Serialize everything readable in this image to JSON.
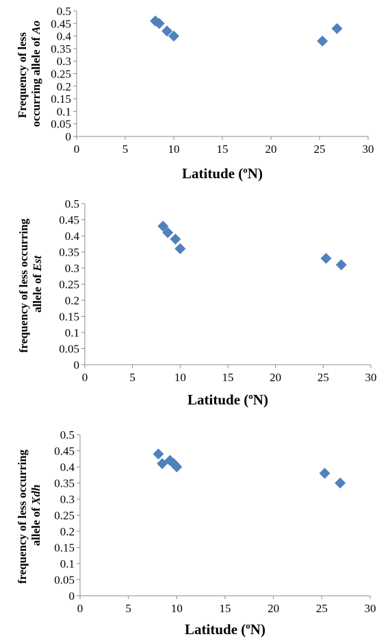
{
  "chart_data": [
    {
      "type": "scatter",
      "xlabel": "Latitude (",
      "xlabel_sup": "o",
      "xlabel_end": "N)",
      "ylabel_line1": "Frequency of less",
      "ylabel_line2": "occurring allele of ",
      "ylabel_italic": "Ao",
      "xlim": [
        0,
        30
      ],
      "ylim": [
        0,
        0.5
      ],
      "x_ticks": [
        "0",
        "5",
        "10",
        "15",
        "20",
        "25",
        "30"
      ],
      "y_ticks": [
        "0",
        "0.05",
        "0.1",
        "0.15",
        "0.2",
        "0.25",
        "0.3",
        "0.35",
        "0.4",
        "0.45",
        "0.5"
      ],
      "marker_color": "#4f81bd",
      "points": [
        {
          "x": 8.1,
          "y": 0.46
        },
        {
          "x": 8.5,
          "y": 0.45
        },
        {
          "x": 9.3,
          "y": 0.42
        },
        {
          "x": 10.0,
          "y": 0.4
        },
        {
          "x": 25.3,
          "y": 0.38
        },
        {
          "x": 26.8,
          "y": 0.43
        }
      ]
    },
    {
      "type": "scatter",
      "xlabel": "Latitude (",
      "xlabel_sup": "o",
      "xlabel_end": "N)",
      "ylabel_line1": "frequency of less occurring",
      "ylabel_line2": "allele of  ",
      "ylabel_italic": "Est",
      "xlim": [
        0,
        30
      ],
      "ylim": [
        0,
        0.5
      ],
      "x_ticks": [
        "0",
        "5",
        "10",
        "15",
        "20",
        "25",
        "30"
      ],
      "y_ticks": [
        "0",
        "0.05",
        "0.1",
        "0.15",
        "0.2",
        "0.25",
        "0.3",
        "0.35",
        "0.4",
        "0.45",
        "0.5"
      ],
      "marker_color": "#4f81bd",
      "points": [
        {
          "x": 8.2,
          "y": 0.43
        },
        {
          "x": 8.7,
          "y": 0.41
        },
        {
          "x": 9.5,
          "y": 0.39
        },
        {
          "x": 10.0,
          "y": 0.36
        },
        {
          "x": 25.3,
          "y": 0.33
        },
        {
          "x": 26.9,
          "y": 0.31
        }
      ]
    },
    {
      "type": "scatter",
      "xlabel": "Latitude (",
      "xlabel_sup": "o",
      "xlabel_end": "N)",
      "ylabel_line1": "frequency of  less occurring",
      "ylabel_line2": "allele of ",
      "ylabel_italic": "Xdh",
      "xlim": [
        0,
        30
      ],
      "ylim": [
        0,
        0.5
      ],
      "x_ticks": [
        "0",
        "5",
        "10",
        "15",
        "20",
        "25",
        "30"
      ],
      "y_ticks": [
        "0",
        "0.05",
        "0.1",
        "0.15",
        "0.2",
        "0.25",
        "0.3",
        "0.35",
        "0.4",
        "0.45",
        "0.5"
      ],
      "marker_color": "#4f81bd",
      "points": [
        {
          "x": 8.1,
          "y": 0.44
        },
        {
          "x": 8.5,
          "y": 0.41
        },
        {
          "x": 9.3,
          "y": 0.42
        },
        {
          "x": 9.7,
          "y": 0.41
        },
        {
          "x": 10.0,
          "y": 0.4
        },
        {
          "x": 25.3,
          "y": 0.38
        },
        {
          "x": 26.9,
          "y": 0.35
        }
      ]
    }
  ]
}
